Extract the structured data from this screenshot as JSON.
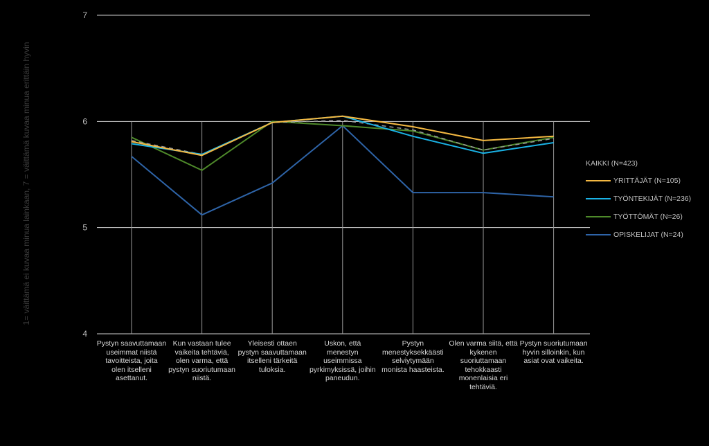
{
  "chart_data": {
    "type": "line",
    "ylabel": "1= väittämä ei kuvaa minua lainkaan, 7 = väittämä kuvaa minua erittäin hyvin",
    "ylim": [
      4,
      7
    ],
    "yticks": [
      "4",
      "5",
      "6",
      "7"
    ],
    "grid": true,
    "legend_position": "right",
    "legend_title": "KAIKKI (N=423)",
    "categories": [
      "Pystyn saavuttamaan useimmat niistä tavoitteista, joita olen itselleni asettanut.",
      "Kun vastaan tulee vaikeita tehtäviä, olen varma, että pystyn suoriutumaan niistä.",
      "Yleisesti ottaen pystyn saavuttamaan itselleni tärkeitä tuloksia.",
      "Uskon, että menestyn useimmissa pyrkimyksissä, joihin paneudun.",
      "Pystyn menestyksekkäästi selviytymään monista haasteista.",
      "Olen varma siitä, että kykenen suoriuttamaan tehokkaasti monenlaisia eri tehtäviä.",
      "Pystyn suoriutumaan hyvin silloinkin, kun asiat ovat vaikeita."
    ],
    "category_lines": [
      [
        "Pystyn saavuttamaan",
        "useimmat niistä",
        "tavoitteista, joita",
        "olen itselleni",
        "asettanut."
      ],
      [
        "Kun vastaan tulee",
        "vaikeita tehtäviä,",
        "olen varma, että",
        "pystyn suoriutumaan",
        "niistä."
      ],
      [
        "Yleisesti ottaen",
        "pystyn saavuttamaan",
        "itselleni tärkeitä",
        "tuloksia."
      ],
      [
        "Uskon, että",
        "menestyn",
        "useimmissa",
        "pyrkimyksissä, joihin",
        "paneudun."
      ],
      [
        "Pystyn",
        "menestyksekkäästi",
        "selviytymään",
        "monista haasteista."
      ],
      [
        "Olen varma siitä, että",
        "kykenen",
        "suoriuttamaan",
        "tehokkaasti",
        "monenlaisia eri",
        "tehtäviä."
      ],
      [
        "Pystyn suoriutumaan",
        "hyvin silloinkin, kun",
        "asiat ovat vaikeita."
      ]
    ],
    "series": [
      {
        "name": "KAIKKI (N=423)",
        "color": "#9a9a9a",
        "dashed": true,
        "values": [
          5.82,
          5.69,
          5.99,
          6.01,
          5.92,
          5.73,
          5.84
        ]
      },
      {
        "name": "YRITTÄJÄT (N=105)",
        "color": "#f5b942",
        "dashed": false,
        "values": [
          5.81,
          5.68,
          5.99,
          6.05,
          5.95,
          5.82,
          5.86
        ]
      },
      {
        "name": "TYÖNTEKIJÄT (N=236)",
        "color": "#1ab3e6",
        "dashed": false,
        "values": [
          5.79,
          5.69,
          5.99,
          6.05,
          5.86,
          5.7,
          5.8
        ]
      },
      {
        "name": "TYÖTTÖMÄT (N=26)",
        "color": "#4e8a2a",
        "dashed": false,
        "values": [
          5.85,
          5.54,
          6.0,
          5.96,
          5.91,
          5.73,
          5.85
        ]
      },
      {
        "name": "OPISKELIJAT (N=24)",
        "color": "#2e64a8",
        "dashed": false,
        "values": [
          5.67,
          5.12,
          5.42,
          5.96,
          5.33,
          5.33,
          5.29
        ]
      }
    ]
  }
}
